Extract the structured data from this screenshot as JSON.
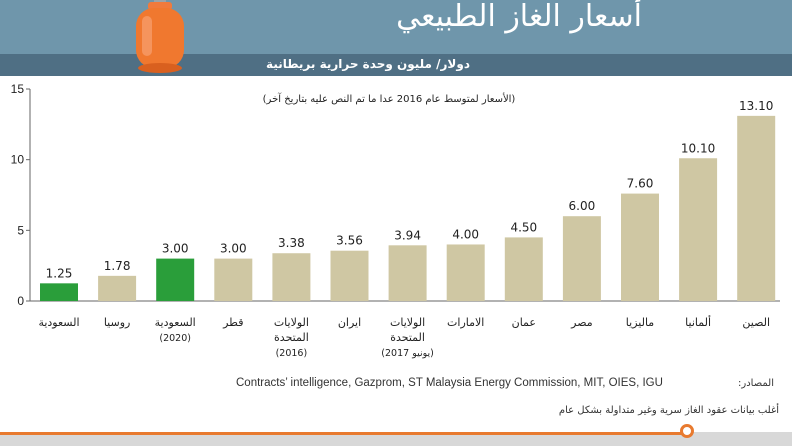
{
  "header": {
    "title": "أسعار الغاز الطبيعي",
    "subtitle": "دولار/ مليون وحدة حرارية بريطانية"
  },
  "icons": {
    "gas_cylinder": "gas-cylinder-icon"
  },
  "colors": {
    "banner": "#6f96ab",
    "subbar": "#4f6f84",
    "bar_default": "#cfc7a3",
    "bar_highlight": "#2a9e3a",
    "accent": "#e87a2f"
  },
  "chart_data": {
    "type": "bar",
    "note": "(الأسعار لمتوسط عام 2016 عدا ما تم النص عليه بتاريخ آخر)",
    "ylim": [
      0,
      15
    ],
    "yticks": [
      0,
      5,
      10,
      15
    ],
    "grid": false,
    "categories": [
      [
        "السعودية"
      ],
      [
        "روسيا"
      ],
      [
        "السعودية",
        "(2020)"
      ],
      [
        "قطر"
      ],
      [
        "الولايات",
        "المتحدة",
        "(2016)"
      ],
      [
        "ايران"
      ],
      [
        "الولايات",
        "المتحدة",
        "(يونيو 2017)"
      ],
      [
        "الامارات"
      ],
      [
        "عمان"
      ],
      [
        "مصر"
      ],
      [
        "ماليزيا"
      ],
      [
        "ألمانيا"
      ],
      [
        "الصين"
      ]
    ],
    "values": [
      1.25,
      1.78,
      3.0,
      3.0,
      3.38,
      3.56,
      3.94,
      4.0,
      4.5,
      6.0,
      7.6,
      10.1,
      13.1
    ],
    "value_labels": [
      "1.25",
      "1.78",
      "3.00",
      "3.00",
      "3.38",
      "3.56",
      "3.94",
      "4.00",
      "4.50",
      "6.00",
      "7.60",
      "10.10",
      "13.10"
    ],
    "highlight": [
      true,
      false,
      true,
      false,
      false,
      false,
      false,
      false,
      false,
      false,
      false,
      false,
      false
    ]
  },
  "footer": {
    "sources_label": "المصادر:",
    "sources": "Contracts’ intelligence, Gazprom, ST Malaysia Energy Commission, MIT, OIES, IGU",
    "note": "أغلب بيانات عقود الغاز سرية وغير متداولة بشكل عام"
  }
}
